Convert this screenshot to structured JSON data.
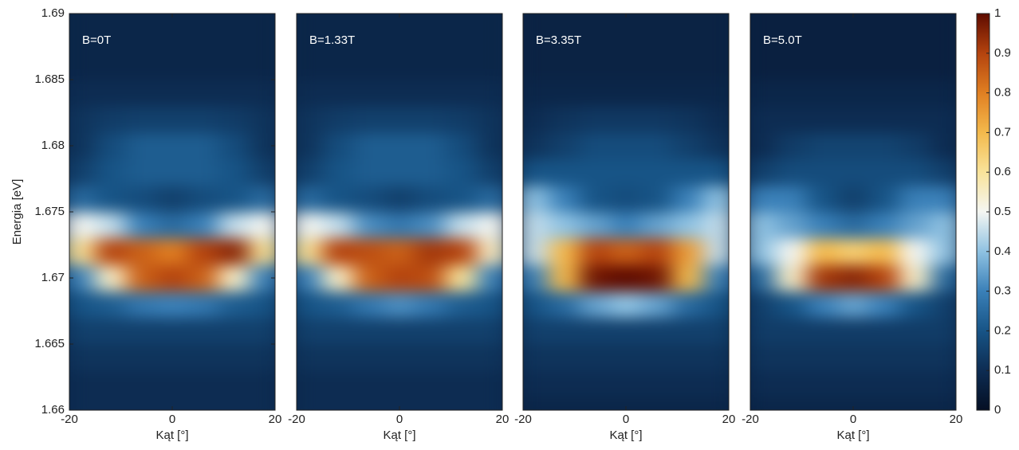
{
  "chart_data": [
    {
      "type": "heatmap",
      "annotation": "B=0T",
      "xlabel": "Kąt [°]",
      "ylabel": "Energia [eV]",
      "xlim": [
        -20,
        20
      ],
      "xticks": [
        -20,
        0,
        20
      ],
      "ylim": [
        1.66,
        1.69
      ],
      "yticks": [
        1.69,
        1.685,
        1.68,
        1.675,
        1.67,
        1.665,
        1.66
      ],
      "x": [
        -18,
        -12,
        -6,
        0,
        6,
        12,
        18
      ],
      "y": [
        1.66,
        1.662,
        1.664,
        1.666,
        1.668,
        1.67,
        1.672,
        1.674,
        1.676,
        1.678,
        1.68,
        1.682,
        1.684,
        1.686,
        1.688,
        1.69
      ],
      "z": [
        [
          0.1,
          0.1,
          0.1,
          0.1,
          0.1,
          0.1,
          0.1
        ],
        [
          0.1,
          0.1,
          0.1,
          0.1,
          0.1,
          0.1,
          0.1
        ],
        [
          0.12,
          0.12,
          0.12,
          0.12,
          0.12,
          0.12,
          0.12
        ],
        [
          0.15,
          0.15,
          0.15,
          0.15,
          0.15,
          0.15,
          0.15
        ],
        [
          0.2,
          0.22,
          0.28,
          0.3,
          0.28,
          0.22,
          0.2
        ],
        [
          0.3,
          0.55,
          0.85,
          0.9,
          0.85,
          0.55,
          0.3
        ],
        [
          0.6,
          0.9,
          0.85,
          0.8,
          0.9,
          0.95,
          0.6
        ],
        [
          0.5,
          0.45,
          0.3,
          0.25,
          0.3,
          0.45,
          0.5
        ],
        [
          0.25,
          0.2,
          0.18,
          0.15,
          0.18,
          0.2,
          0.25
        ],
        [
          0.15,
          0.2,
          0.22,
          0.22,
          0.22,
          0.2,
          0.15
        ],
        [
          0.12,
          0.18,
          0.22,
          0.22,
          0.22,
          0.18,
          0.12
        ],
        [
          0.12,
          0.14,
          0.15,
          0.15,
          0.15,
          0.14,
          0.12
        ],
        [
          0.1,
          0.1,
          0.1,
          0.1,
          0.1,
          0.1,
          0.1
        ],
        [
          0.08,
          0.08,
          0.08,
          0.08,
          0.08,
          0.08,
          0.08
        ],
        [
          0.08,
          0.08,
          0.08,
          0.08,
          0.08,
          0.08,
          0.08
        ],
        [
          0.08,
          0.08,
          0.08,
          0.08,
          0.08,
          0.08,
          0.08
        ]
      ]
    },
    {
      "type": "heatmap",
      "annotation": "B=1.33T",
      "xlabel": "Kąt [°]",
      "xlim": [
        -20,
        20
      ],
      "xticks": [
        -20,
        0,
        20
      ],
      "ylim": [
        1.66,
        1.69
      ],
      "x": [
        -18,
        -12,
        -6,
        0,
        6,
        12,
        18
      ],
      "y": [
        1.66,
        1.662,
        1.664,
        1.666,
        1.668,
        1.67,
        1.672,
        1.674,
        1.676,
        1.678,
        1.68,
        1.682,
        1.684,
        1.686,
        1.688,
        1.69
      ],
      "z": [
        [
          0.1,
          0.1,
          0.1,
          0.1,
          0.1,
          0.1,
          0.1
        ],
        [
          0.1,
          0.1,
          0.1,
          0.1,
          0.1,
          0.1,
          0.1
        ],
        [
          0.12,
          0.12,
          0.12,
          0.12,
          0.12,
          0.12,
          0.12
        ],
        [
          0.15,
          0.15,
          0.15,
          0.15,
          0.15,
          0.15,
          0.15
        ],
        [
          0.2,
          0.22,
          0.28,
          0.32,
          0.28,
          0.22,
          0.2
        ],
        [
          0.3,
          0.55,
          0.85,
          0.9,
          0.88,
          0.6,
          0.3
        ],
        [
          0.6,
          0.9,
          0.88,
          0.85,
          0.92,
          0.9,
          0.55
        ],
        [
          0.5,
          0.45,
          0.32,
          0.28,
          0.32,
          0.45,
          0.5
        ],
        [
          0.25,
          0.2,
          0.18,
          0.15,
          0.18,
          0.2,
          0.25
        ],
        [
          0.15,
          0.2,
          0.22,
          0.22,
          0.22,
          0.2,
          0.15
        ],
        [
          0.12,
          0.18,
          0.22,
          0.22,
          0.22,
          0.18,
          0.12
        ],
        [
          0.12,
          0.14,
          0.15,
          0.15,
          0.15,
          0.14,
          0.12
        ],
        [
          0.1,
          0.1,
          0.1,
          0.1,
          0.1,
          0.1,
          0.1
        ],
        [
          0.08,
          0.08,
          0.08,
          0.08,
          0.08,
          0.08,
          0.08
        ],
        [
          0.08,
          0.08,
          0.08,
          0.08,
          0.08,
          0.08,
          0.08
        ],
        [
          0.08,
          0.08,
          0.08,
          0.08,
          0.08,
          0.08,
          0.08
        ]
      ]
    },
    {
      "type": "heatmap",
      "annotation": "B=3.35T",
      "xlabel": "Kąt [°]",
      "xlim": [
        -20,
        20
      ],
      "xticks": [
        -20,
        0,
        20
      ],
      "ylim": [
        1.66,
        1.69
      ],
      "x": [
        -18,
        -12,
        -6,
        0,
        6,
        12,
        18
      ],
      "y": [
        1.66,
        1.662,
        1.664,
        1.666,
        1.668,
        1.67,
        1.672,
        1.674,
        1.676,
        1.678,
        1.68,
        1.682,
        1.684,
        1.686,
        1.688,
        1.69
      ],
      "z": [
        [
          0.08,
          0.08,
          0.08,
          0.08,
          0.08,
          0.08,
          0.08
        ],
        [
          0.1,
          0.1,
          0.1,
          0.1,
          0.1,
          0.1,
          0.1
        ],
        [
          0.12,
          0.12,
          0.12,
          0.12,
          0.12,
          0.12,
          0.12
        ],
        [
          0.15,
          0.15,
          0.15,
          0.15,
          0.15,
          0.15,
          0.15
        ],
        [
          0.2,
          0.25,
          0.35,
          0.4,
          0.35,
          0.25,
          0.2
        ],
        [
          0.3,
          0.7,
          0.98,
          1.0,
          0.98,
          0.7,
          0.3
        ],
        [
          0.45,
          0.7,
          0.9,
          0.85,
          0.9,
          0.75,
          0.45
        ],
        [
          0.45,
          0.4,
          0.35,
          0.3,
          0.35,
          0.4,
          0.45
        ],
        [
          0.4,
          0.3,
          0.2,
          0.18,
          0.2,
          0.3,
          0.4
        ],
        [
          0.2,
          0.2,
          0.2,
          0.2,
          0.2,
          0.2,
          0.2
        ],
        [
          0.12,
          0.15,
          0.18,
          0.18,
          0.18,
          0.15,
          0.12
        ],
        [
          0.1,
          0.12,
          0.13,
          0.13,
          0.13,
          0.12,
          0.1
        ],
        [
          0.08,
          0.08,
          0.08,
          0.08,
          0.08,
          0.08,
          0.08
        ],
        [
          0.07,
          0.07,
          0.07,
          0.07,
          0.07,
          0.07,
          0.07
        ],
        [
          0.07,
          0.07,
          0.07,
          0.07,
          0.07,
          0.07,
          0.07
        ],
        [
          0.07,
          0.07,
          0.07,
          0.07,
          0.07,
          0.07,
          0.07
        ]
      ]
    },
    {
      "type": "heatmap",
      "annotation": "B=5.0T",
      "xlabel": "Kąt [°]",
      "xlim": [
        -20,
        20
      ],
      "xticks": [
        -20,
        0,
        20
      ],
      "ylim": [
        1.66,
        1.69
      ],
      "x": [
        -18,
        -12,
        -6,
        0,
        6,
        12,
        18
      ],
      "y": [
        1.66,
        1.662,
        1.664,
        1.666,
        1.668,
        1.67,
        1.672,
        1.674,
        1.676,
        1.678,
        1.68,
        1.682,
        1.684,
        1.686,
        1.688,
        1.69
      ],
      "z": [
        [
          0.08,
          0.08,
          0.08,
          0.08,
          0.08,
          0.08,
          0.08
        ],
        [
          0.1,
          0.1,
          0.1,
          0.1,
          0.1,
          0.1,
          0.1
        ],
        [
          0.12,
          0.12,
          0.12,
          0.12,
          0.12,
          0.12,
          0.12
        ],
        [
          0.14,
          0.14,
          0.14,
          0.14,
          0.14,
          0.14,
          0.14
        ],
        [
          0.15,
          0.2,
          0.3,
          0.35,
          0.3,
          0.2,
          0.15
        ],
        [
          0.25,
          0.55,
          0.92,
          0.95,
          0.9,
          0.55,
          0.25
        ],
        [
          0.4,
          0.5,
          0.7,
          0.65,
          0.7,
          0.5,
          0.4
        ],
        [
          0.4,
          0.35,
          0.3,
          0.25,
          0.3,
          0.35,
          0.4
        ],
        [
          0.3,
          0.3,
          0.2,
          0.15,
          0.2,
          0.3,
          0.3
        ],
        [
          0.15,
          0.18,
          0.18,
          0.18,
          0.18,
          0.18,
          0.15
        ],
        [
          0.1,
          0.14,
          0.16,
          0.16,
          0.16,
          0.14,
          0.1
        ],
        [
          0.1,
          0.1,
          0.1,
          0.1,
          0.1,
          0.1,
          0.1
        ],
        [
          0.08,
          0.08,
          0.08,
          0.08,
          0.08,
          0.08,
          0.08
        ],
        [
          0.06,
          0.06,
          0.06,
          0.06,
          0.06,
          0.06,
          0.06
        ],
        [
          0.06,
          0.06,
          0.06,
          0.06,
          0.06,
          0.06,
          0.06
        ],
        [
          0.06,
          0.06,
          0.06,
          0.06,
          0.06,
          0.06,
          0.06
        ]
      ]
    },
    {
      "type": "colorbar",
      "clim": [
        0,
        1
      ],
      "cticks": [
        0,
        0.1,
        0.2,
        0.3,
        0.4,
        0.5,
        0.6,
        0.7,
        0.8,
        0.9,
        1
      ],
      "colors": [
        "#050f24",
        "#0d2c52",
        "#175486",
        "#3a80b8",
        "#8fc2e2",
        "#f4f6f2",
        "#f9e39a",
        "#f3b94c",
        "#e07f22",
        "#b4430e",
        "#5e0b00"
      ]
    }
  ]
}
